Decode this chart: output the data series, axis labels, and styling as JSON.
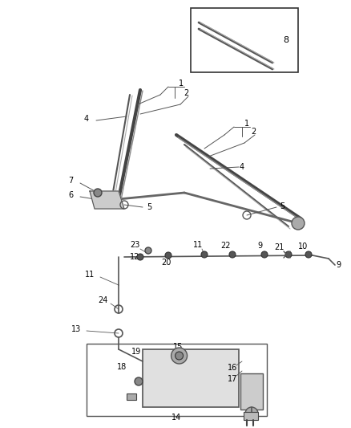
{
  "bg_color": "#ffffff",
  "fig_width": 4.38,
  "fig_height": 5.33,
  "dpi": 100,
  "lc": "#555555",
  "dark": "#333333",
  "gray": "#999999",
  "fs": 7.0
}
